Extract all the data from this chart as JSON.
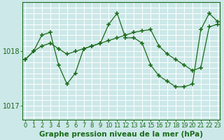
{
  "xlabel": "Graphe pression niveau de la mer (hPa)",
  "bg_color": "#cce8e8",
  "grid_color": "#ffffff",
  "line_color": "#1a6b1a",
  "marker_color": "#1a6b1a",
  "x_ticks": [
    0,
    1,
    2,
    3,
    4,
    5,
    6,
    7,
    8,
    9,
    10,
    11,
    12,
    13,
    14,
    15,
    16,
    17,
    18,
    19,
    20,
    21,
    22,
    23
  ],
  "yticks": [
    1017,
    1018
  ],
  "ylim": [
    1016.75,
    1018.9
  ],
  "xlim": [
    -0.3,
    23.3
  ],
  "series1_x": [
    0,
    1,
    2,
    3,
    4,
    5,
    6,
    7,
    8,
    9,
    10,
    11,
    12,
    13,
    14,
    15,
    16,
    17,
    18,
    19,
    20,
    21,
    22,
    23
  ],
  "series1_y": [
    1017.85,
    1018.0,
    1018.1,
    1018.15,
    1018.05,
    1017.95,
    1018.0,
    1018.05,
    1018.1,
    1018.15,
    1018.2,
    1018.25,
    1018.3,
    1018.35,
    1018.38,
    1018.4,
    1018.1,
    1017.95,
    1017.85,
    1017.75,
    1017.65,
    1017.7,
    1018.45,
    1018.5
  ],
  "series2_x": [
    0,
    1,
    2,
    3,
    4,
    5,
    6,
    7,
    8,
    9,
    10,
    11,
    12,
    13,
    14,
    15,
    16,
    17,
    18,
    19,
    20,
    21,
    22,
    23
  ],
  "series2_y": [
    1017.85,
    1018.0,
    1018.3,
    1018.35,
    1017.75,
    1017.4,
    1017.6,
    1018.05,
    1018.1,
    1018.15,
    1018.5,
    1018.7,
    1018.25,
    1018.25,
    1018.15,
    1017.75,
    1017.55,
    1017.45,
    1017.35,
    1017.35,
    1017.4,
    1018.4,
    1018.7,
    1018.55
  ],
  "xlabel_color": "#1a6b1a",
  "xlabel_fontsize": 7.5,
  "tick_fontsize": 6,
  "ytick_fontsize": 7
}
